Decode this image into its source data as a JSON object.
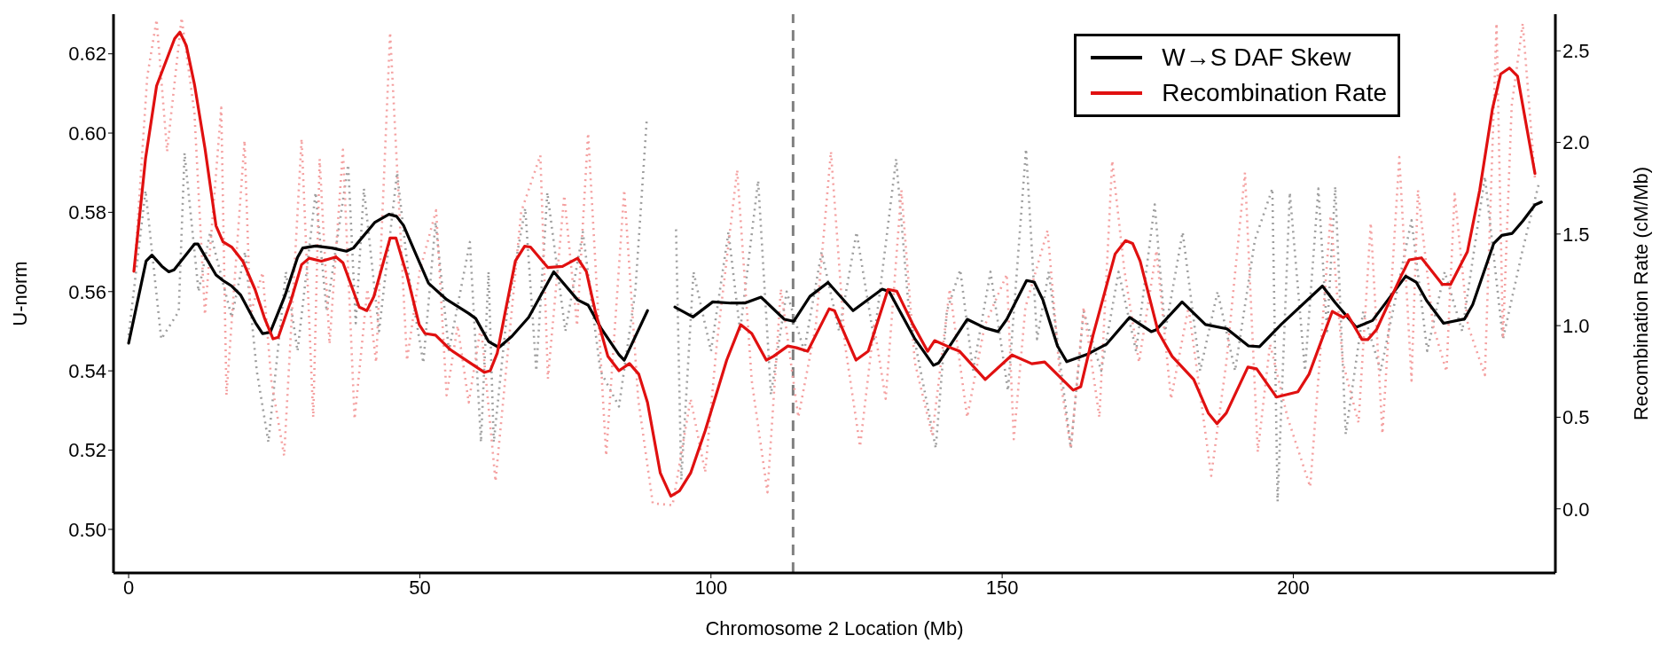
{
  "chart_data": {
    "type": "line",
    "xlabel": "Chromosome 2 Location (Mb)",
    "ylabel": "U-norm",
    "y2label": "Recombination Rate (cM/Mb)",
    "xlim": [
      -2.6,
      245
    ],
    "xticks": [
      0,
      50,
      100,
      150,
      200
    ],
    "ylim": [
      0.489,
      0.63
    ],
    "yticks": [
      {
        "value": 0.5,
        "label": "0.50"
      },
      {
        "value": 0.52,
        "label": "0.52"
      },
      {
        "value": 0.54,
        "label": "0.54"
      },
      {
        "value": 0.56,
        "label": "0.56"
      },
      {
        "value": 0.58,
        "label": "0.58"
      },
      {
        "value": 0.6,
        "label": "0.60"
      },
      {
        "value": 0.62,
        "label": "0.62"
      }
    ],
    "y2lim": [
      -0.35,
      2.7
    ],
    "y2ticks": [
      {
        "value": 0,
        "label": "0.0"
      },
      0.5,
      {
        "value": 1,
        "label": "1.0"
      },
      1.5,
      {
        "value": 2,
        "label": "2.0"
      },
      2.5
    ],
    "legend": "top right",
    "ref_lines": [
      {
        "axis": "x",
        "value": 114.1,
        "color": "#808080",
        "line_style": "dashed"
      }
    ],
    "series": [
      {
        "color": "#9e9e9e",
        "line_style": "dotted",
        "x": [
          0,
          2.9,
          5.6,
          8.6,
          9.6,
          12,
          14,
          17.7,
          20,
          22,
          24,
          27,
          29,
          32.1,
          34,
          37.7,
          39,
          40.4,
          43,
          46.1,
          48,
          50.6,
          52.7,
          55,
          58.6,
          60.5,
          61.8,
          62.7,
          65,
          68.1,
          70,
          71.9,
          75,
          78,
          81,
          84.2,
          87,
          89,
          91.5,
          94,
          94.9,
          97,
          100,
          103,
          105,
          108.1,
          110.3,
          113,
          116,
          119,
          122,
          125,
          128,
          131.8,
          134,
          136,
          138.6,
          140.5,
          142.8,
          145,
          148,
          151,
          154.1,
          156,
          158,
          161.8,
          164,
          167,
          170,
          173,
          176.2,
          178,
          181,
          184,
          187,
          190,
          193.4,
          196.4,
          197.3,
          199.4,
          202,
          204.3,
          205.8,
          207.2,
          209,
          212,
          215,
          220.3,
          223,
          226,
          229,
          232.9,
          236,
          239.3,
          242.2
        ],
        "values": [
          0.549,
          0.5855,
          0.548,
          0.555,
          0.595,
          0.56,
          0.575,
          0.5535,
          0.57,
          0.54,
          0.522,
          0.565,
          0.545,
          0.585,
          0.555,
          0.592,
          0.552,
          0.586,
          0.55,
          0.59,
          0.565,
          0.542,
          0.5775,
          0.545,
          0.5725,
          0.522,
          0.565,
          0.522,
          0.555,
          0.581,
          0.54,
          0.585,
          0.55,
          0.575,
          0.54,
          0.531,
          0.56,
          0.604,
          null,
          0.5757,
          0.5125,
          0.565,
          0.545,
          0.575,
          0.55,
          0.588,
          0.534,
          0.56,
          0.545,
          0.57,
          0.55,
          0.575,
          0.548,
          0.5935,
          0.555,
          0.54,
          0.5205,
          0.555,
          0.5655,
          0.54,
          0.565,
          0.535,
          0.596,
          0.548,
          0.565,
          0.5205,
          0.555,
          0.54,
          0.565,
          0.545,
          0.582,
          0.55,
          0.575,
          0.54,
          0.56,
          0.54,
          0.573,
          0.586,
          0.507,
          0.585,
          0.54,
          0.586,
          0.55,
          0.5865,
          0.524,
          0.555,
          0.54,
          0.578,
          0.545,
          0.565,
          0.55,
          0.589,
          0.548,
          0.57,
          0.5875
        ]
      },
      {
        "color": "#f4a0a0",
        "line_style": "dotted",
        "axis": "y2",
        "x": [
          1,
          3.2,
          4.8,
          6.6,
          9.1,
          11.3,
          13.1,
          15.9,
          16.8,
          19.9,
          20.9,
          23,
          24.5,
          26.7,
          29.7,
          31.7,
          32.8,
          34.5,
          36.8,
          38.8,
          41,
          42.5,
          44.9,
          47.8,
          50,
          52.8,
          54.6,
          56.5,
          58.4,
          60.5,
          63,
          67.4,
          70.7,
          72,
          74.8,
          77,
          78.9,
          82,
          85.1,
          87.5,
          90,
          93.4,
          96.5,
          99,
          101,
          104.5,
          107,
          109.7,
          112,
          115,
          118,
          120.6,
          123,
          125.6,
          128,
          130,
          132.7,
          135,
          138,
          141,
          144,
          147,
          150.8,
          152,
          154,
          157.8,
          160,
          161.8,
          164,
          166.7,
          168.9,
          171,
          173.5,
          176.5,
          179,
          182,
          185.9,
          188.5,
          191.7,
          193.9,
          196,
          199,
          202.9,
          206.4,
          208.5,
          211.2,
          213.3,
          215.3,
          218.2,
          220.3,
          221.4,
          224,
          226.3,
          227.7,
          230,
          232.9,
          234.9,
          236,
          237.5,
          239.4,
          241.5
        ],
        "values": [
          1.3,
          2.36,
          2.67,
          1.95,
          2.68,
          2.16,
          1.06,
          2.19,
          0.62,
          2.01,
          1.06,
          1.29,
          0.7,
          0.29,
          2.02,
          0.5,
          1.91,
          0.9,
          1.96,
          0.49,
          1.2,
          0.8,
          2.6,
          0.81,
          1.3,
          1.63,
          0.62,
          1.0,
          0.58,
          1.0,
          0.15,
          1.62,
          1.93,
          0.71,
          1.71,
          1.0,
          2.05,
          0.29,
          1.74,
          0.6,
          0.03,
          0.02,
          0.6,
          0.2,
          0.9,
          1.85,
          0.7,
          0.09,
          1.2,
          0.5,
          1.0,
          1.95,
          0.9,
          0.34,
          1.0,
          0.6,
          1.74,
          0.8,
          0.4,
          1.2,
          0.5,
          1.0,
          1.28,
          0.38,
          1.1,
          1.52,
          0.7,
          0.33,
          1.1,
          0.5,
          1.9,
          1.3,
          0.8,
          1.41,
          0.6,
          1.1,
          0.18,
          0.8,
          1.835,
          0.31,
          0.9,
          0.5,
          0.12,
          1.6,
          0.8,
          0.47,
          1.56,
          0.41,
          1.92,
          0.7,
          1.74,
          1.0,
          0.75,
          1.72,
          1.0,
          0.73,
          2.65,
          0.93,
          2.2,
          2.65,
          1.8
        ]
      },
      {
        "name": "W→S DAF Skew",
        "color": "#000000",
        "line_style": "solid",
        "x": [
          0,
          3,
          4,
          5.7,
          6.9,
          7.8,
          11.3,
          11.9,
          15,
          16.2,
          17.7,
          19.2,
          21.8,
          23,
          24.3,
          26.8,
          29,
          29.9,
          32.1,
          34.9,
          37.4,
          38.6,
          42.3,
          44.7,
          46,
          47.2,
          49.1,
          51.5,
          54.6,
          58.4,
          59.6,
          61.8,
          63.6,
          65.8,
          68.7,
          73,
          77.1,
          78.9,
          81.1,
          84.2,
          85.1,
          89.1,
          91.5,
          93.8,
          96.9,
          100.3,
          103.4,
          105.8,
          108.6,
          112.6,
          114.2,
          117,
          120.1,
          124.4,
          129.4,
          130.6,
          135,
          138.2,
          139.1,
          144,
          147.1,
          149.3,
          150.8,
          154.2,
          155.5,
          157,
          159.5,
          161.1,
          164.5,
          167.9,
          171.9,
          175.6,
          176.5,
          180.9,
          184.9,
          188.6,
          192.3,
          194.2,
          197.9,
          205,
          207.2,
          210.8,
          213.6,
          219.3,
          221.1,
          222.9,
          225.8,
          229.4,
          230.8,
          234.4,
          235.8,
          237.6,
          239.4,
          241.5,
          242.6
        ],
        "values": [
          0.547,
          0.5677,
          0.5692,
          0.5664,
          0.565,
          0.5655,
          0.572,
          0.572,
          0.5642,
          0.5628,
          0.5614,
          0.5592,
          0.5521,
          0.5494,
          0.5497,
          0.5588,
          0.5686,
          0.571,
          0.5715,
          0.571,
          0.5702,
          0.571,
          0.5775,
          0.5795,
          0.579,
          0.5767,
          0.5702,
          0.5621,
          0.558,
          0.5545,
          0.5532,
          0.5474,
          0.5459,
          0.5487,
          0.5535,
          0.565,
          0.5579,
          0.5566,
          0.5508,
          0.5441,
          0.5427,
          0.5552,
          null,
          0.5561,
          0.5536,
          0.5574,
          0.5571,
          0.5571,
          0.5586,
          0.553,
          0.5525,
          0.5588,
          0.5623,
          0.5552,
          0.5606,
          0.56,
          0.5481,
          0.5414,
          0.542,
          0.553,
          0.5508,
          0.5499,
          0.553,
          0.5628,
          0.5624,
          0.5579,
          0.5463,
          0.5423,
          0.5441,
          0.5467,
          0.5535,
          0.5499,
          0.5504,
          0.5574,
          0.5517,
          0.5506,
          0.5463,
          0.5461,
          0.5517,
          0.5614,
          0.5572,
          0.551,
          0.5527,
          0.5639,
          0.5624,
          0.5577,
          0.552,
          0.5531,
          0.5567,
          0.5721,
          0.5742,
          0.5747,
          0.5778,
          0.5819,
          0.5826
        ]
      },
      {
        "name": "Recombination Rate",
        "color": "#e01010",
        "line_style": "solid",
        "axis": "y2",
        "x": [
          0.9,
          2.9,
          4.8,
          7.9,
          8.8,
          9.9,
          11.3,
          13.1,
          15,
          16.2,
          17.7,
          19.6,
          21.7,
          23.3,
          24.8,
          25.7,
          27.9,
          29.7,
          31,
          33.1,
          35.6,
          36.8,
          39.6,
          40.9,
          42.1,
          44.9,
          45.9,
          47.8,
          49.9,
          50.9,
          52.7,
          55.2,
          58.4,
          61.1,
          62.1,
          63.3,
          64.6,
          66.4,
          68,
          69,
          72,
          74.5,
          77.1,
          78.6,
          80.1,
          82.3,
          84.2,
          86,
          87.6,
          89.1,
          91.3,
          93.1,
          94.6,
          96.5,
          99,
          102.7,
          105.1,
          107,
          109.5,
          110.7,
          113.2,
          114.7,
          116.6,
          120.3,
          121.2,
          124.9,
          127,
          130.4,
          131.9,
          134.7,
          137.2,
          138.4,
          141.2,
          142.7,
          147.1,
          151.7,
          155.1,
          157.3,
          162.2,
          163.5,
          165.6,
          169.4,
          171.2,
          172.4,
          173.7,
          176.8,
          179.2,
          182.9,
          185.4,
          186.9,
          188.5,
          192.2,
          193.7,
          197.1,
          200.8,
          202.7,
          206.7,
          208.6,
          209.3,
          211.8,
          212.8,
          214.3,
          218.5,
          219.9,
          222,
          225.6,
          227,
          229.9,
          232,
          234.2,
          235.6,
          237.1,
          238.5,
          241.5
        ],
        "values": [
          1.297,
          1.912,
          2.309,
          2.567,
          2.602,
          2.529,
          2.317,
          1.969,
          1.545,
          1.458,
          1.429,
          1.352,
          1.198,
          1.044,
          0.928,
          0.937,
          1.14,
          1.333,
          1.368,
          1.352,
          1.375,
          1.343,
          1.101,
          1.082,
          1.158,
          1.478,
          1.478,
          1.275,
          1.005,
          0.957,
          0.948,
          0.87,
          0.802,
          0.745,
          0.754,
          0.85,
          1.063,
          1.352,
          1.433,
          1.429,
          1.317,
          1.323,
          1.368,
          1.295,
          1.082,
          0.832,
          0.754,
          0.793,
          0.735,
          0.581,
          0.195,
          0.069,
          0.098,
          0.195,
          0.426,
          0.812,
          1.005,
          0.957,
          0.812,
          0.832,
          0.889,
          0.879,
          0.86,
          1.092,
          1.082,
          0.812,
          0.86,
          1.198,
          1.188,
          1.005,
          0.86,
          0.918,
          0.879,
          0.86,
          0.706,
          0.84,
          0.792,
          0.802,
          0.648,
          0.667,
          0.947,
          1.391,
          1.464,
          1.449,
          1.352,
          0.966,
          0.832,
          0.706,
          0.523,
          0.465,
          0.523,
          0.774,
          0.764,
          0.61,
          0.639,
          0.735,
          1.078,
          1.044,
          1.06,
          0.924,
          0.924,
          0.979,
          1.27,
          1.359,
          1.37,
          1.225,
          1.225,
          1.404,
          1.738,
          2.184,
          2.373,
          2.406,
          2.362,
          1.83
        ]
      }
    ]
  }
}
